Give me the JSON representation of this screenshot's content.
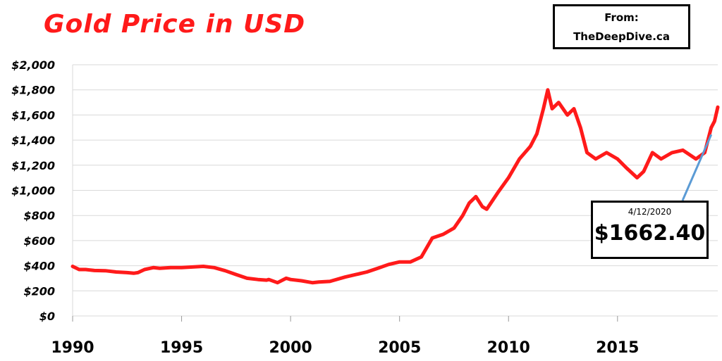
{
  "title": "Gold Price in USD",
  "source": {
    "line1": "From:",
    "line2": "TheDeepDive.ca"
  },
  "callout": {
    "date": "4/12/2020",
    "price": "$1662.40"
  },
  "colors": {
    "series": "#ff1a1a",
    "callout_line": "#5b9bd5",
    "grid": "#d9d9d9"
  },
  "chart_data": {
    "type": "line",
    "title": "Gold Price in USD",
    "xlabel": "",
    "ylabel": "",
    "xlim": [
      1990,
      2019.6
    ],
    "ylim": [
      0,
      2000
    ],
    "grid": true,
    "x_ticks": [
      1990,
      1995,
      2000,
      2005,
      2010,
      2015
    ],
    "x_tick_labels": [
      "1990",
      "1995",
      "2000",
      "2005",
      "2010",
      "2015"
    ],
    "y_ticks": [
      0,
      200,
      400,
      600,
      800,
      1000,
      1200,
      1400,
      1600,
      1800,
      2000
    ],
    "y_tick_labels": [
      "$0",
      "$200",
      "$400",
      "$600",
      "$800",
      "$1,000",
      "$1,200",
      "$1,400",
      "$1,600",
      "$1,800",
      "$2,000"
    ],
    "series": [
      {
        "x": [
          1990.0,
          1990.3,
          1990.6,
          1991.0,
          1991.5,
          1992.0,
          1992.5,
          1992.8,
          1993.0,
          1993.3,
          1993.7,
          1994.0,
          1994.5,
          1995.0,
          1995.5,
          1996.0,
          1996.5,
          1997.0,
          1997.5,
          1998.0,
          1998.5,
          1998.9,
          1999.0,
          1999.4,
          1999.8,
          2000.0,
          2000.5,
          2001.0,
          2001.3,
          2001.8,
          2002.0,
          2002.5,
          2003.0,
          2003.5,
          2004.0,
          2004.5,
          2005.0,
          2005.5,
          2006.0,
          2006.3,
          2006.5,
          2007.0,
          2007.5,
          2007.9,
          2008.2,
          2008.5,
          2008.8,
          2009.0,
          2009.5,
          2010.0,
          2010.5,
          2011.0,
          2011.3,
          2011.6,
          2011.8,
          2012.0,
          2012.3,
          2012.7,
          2013.0,
          2013.3,
          2013.6,
          2014.0,
          2014.5,
          2015.0,
          2015.4,
          2015.9,
          2016.2,
          2016.6,
          2017.0,
          2017.5,
          2018.0,
          2018.6,
          2019.0,
          2019.3,
          2019.45,
          2019.6
        ],
        "y": [
          395,
          370,
          370,
          362,
          360,
          350,
          345,
          340,
          345,
          370,
          385,
          380,
          385,
          385,
          390,
          395,
          385,
          360,
          330,
          300,
          290,
          285,
          290,
          265,
          300,
          290,
          280,
          265,
          270,
          275,
          285,
          310,
          330,
          350,
          380,
          410,
          430,
          430,
          470,
          560,
          620,
          650,
          700,
          800,
          900,
          950,
          870,
          850,
          980,
          1100,
          1250,
          1350,
          1450,
          1650,
          1800,
          1650,
          1700,
          1600,
          1650,
          1500,
          1300,
          1250,
          1300,
          1250,
          1180,
          1100,
          1150,
          1300,
          1250,
          1300,
          1320,
          1250,
          1300,
          1500,
          1550,
          1662
        ]
      }
    ]
  }
}
